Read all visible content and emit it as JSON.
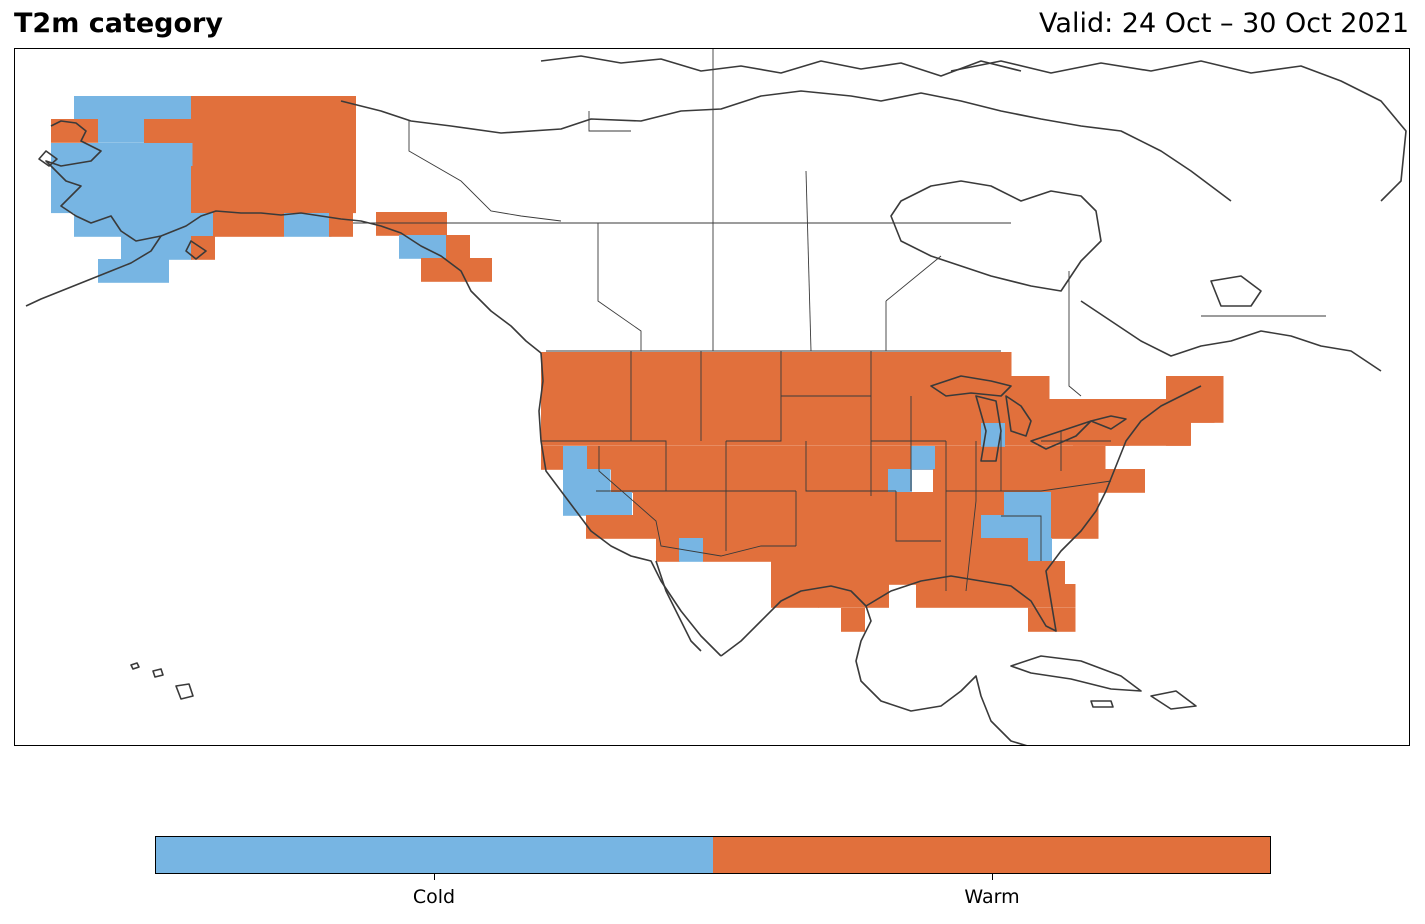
{
  "title": "T2m category",
  "valid": "Valid: 24 Oct – 30 Oct 2021",
  "colors": {
    "cold": "#77b5e3",
    "warm": "#e1703c",
    "coast": "#3a3a3a"
  },
  "legend": {
    "categories": [
      {
        "label": "Cold"
      },
      {
        "label": "Warm"
      }
    ]
  },
  "regions": {
    "cold": [
      "Western Alaska",
      "Southeast Alaska panhandle (part)",
      "California",
      "Southern Arizona",
      "Iowa/Missouri border",
      "Indiana",
      "Georgia/Alabama"
    ],
    "warm": [
      "Interior Alaska",
      "Southeast Alaska",
      "Contiguous United States (most)",
      "Florida",
      "New England"
    ]
  }
}
